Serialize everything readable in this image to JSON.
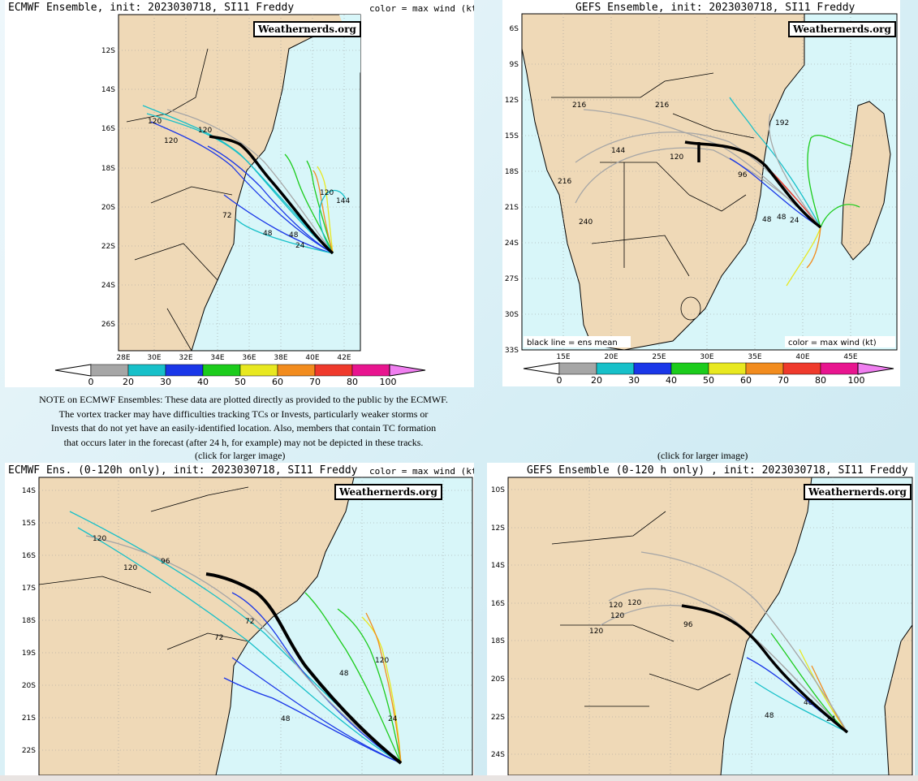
{
  "panels": [
    {
      "id": "ecmwf-full",
      "title": "ECMWF Ensemble, init: 2023030718, SI11 Freddy",
      "color_label": "color = max wind (kt)",
      "watermark": "Weathernerds.org",
      "lat_labels": [
        "12S",
        "14S",
        "16S",
        "18S",
        "20S",
        "22S",
        "24S",
        "26S"
      ],
      "lon_labels": [
        "28E",
        "30E",
        "32E",
        "34E",
        "36E",
        "38E",
        "40E",
        "42E"
      ],
      "colorbar_labels": [
        "0",
        "20",
        "30",
        "40",
        "50",
        "60",
        "70",
        "80",
        "100"
      ],
      "hour_labels": [
        "120",
        "120",
        "120",
        "72",
        "48",
        "48",
        "24",
        "144",
        "120"
      ]
    },
    {
      "id": "gefs-full",
      "title": "GEFS Ensemble, init: 2023030718, SI11 Freddy",
      "watermark": "Weathernerds.org",
      "lat_labels": [
        "6S",
        "9S",
        "12S",
        "15S",
        "18S",
        "21S",
        "24S",
        "27S",
        "30S",
        "33S"
      ],
      "lon_labels": [
        "15E",
        "20E",
        "25E",
        "30E",
        "35E",
        "40E",
        "45E"
      ],
      "legend_left": "black line = ens mean",
      "legend_right": "color = max wind (kt)",
      "colorbar_labels": [
        "0",
        "20",
        "30",
        "40",
        "50",
        "60",
        "70",
        "80",
        "100"
      ],
      "hour_labels": [
        "216",
        "216",
        "240",
        "192",
        "144",
        "120",
        "96",
        "48",
        "48",
        "24",
        "216"
      ]
    },
    {
      "id": "ecmwf-120",
      "title": "ECMWF Ens. (0-120h only), init: 2023030718, SI11 Freddy",
      "color_label": "color = max wind (kt)",
      "watermark": "Weathernerds.org",
      "lat_labels": [
        "14S",
        "15S",
        "16S",
        "17S",
        "18S",
        "19S",
        "20S",
        "21S",
        "22S"
      ],
      "hour_labels": [
        "120",
        "120",
        "96",
        "72",
        "72",
        "48",
        "48",
        "24",
        "120"
      ]
    },
    {
      "id": "gefs-120",
      "title": "GEFS Ensemble (0-120 h only) , init: 2023030718, SI11 Freddy",
      "watermark": "Weathernerds.org",
      "lat_labels": [
        "10S",
        "12S",
        "14S",
        "16S",
        "18S",
        "20S",
        "22S",
        "24S"
      ],
      "hour_labels": [
        "120",
        "120",
        "120",
        "120",
        "96",
        "48",
        "48",
        "24"
      ]
    }
  ],
  "note": [
    "NOTE on ECMWF Ensembles: These data are plotted directly as provided to the public by the ECMWF.",
    "The vortex tracker may have difficulties tracking TCs or Invests, particularly weaker storms or",
    "Invests that do not yet have an easily-identified location. Also, members that contain TC formation",
    "that occurs later in the forecast (after 24 h, for example) may not be depicted in these tracks."
  ],
  "captions": {
    "left": "(click for larger image)",
    "right": "(click for larger image)"
  },
  "colors": {
    "land": "#efd9b7",
    "ocean": "#d8f6f9",
    "ensemble_mean": "#000000",
    "wind_scale": [
      "#a6a6a6",
      "#17c0c9",
      "#1a37e8",
      "#1ccc1c",
      "#e8e820",
      "#f28c1e",
      "#ef3a2c",
      "#e8158f",
      "#f07ff0"
    ]
  }
}
